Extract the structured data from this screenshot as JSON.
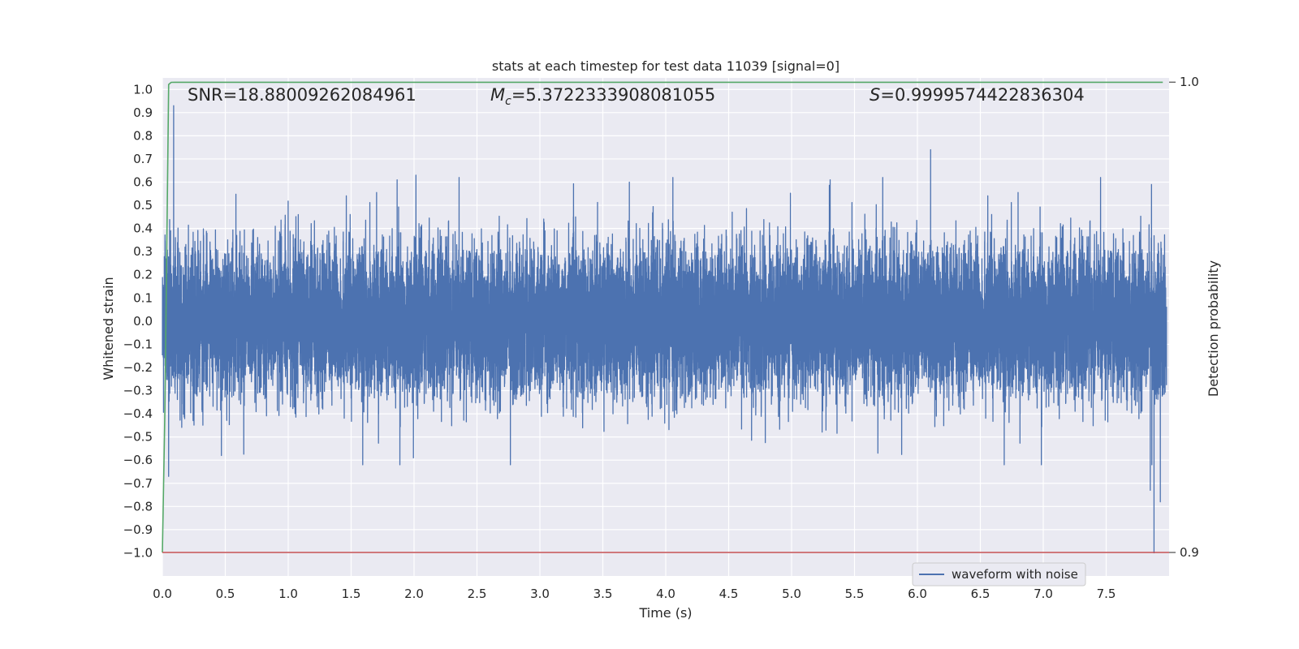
{
  "chart_data": {
    "type": "line",
    "title": "stats at each timestep for test data 11039 [signal=0]",
    "xlabel": "Time (s)",
    "ylabel": "Whitened strain",
    "y2label": "Detection probability",
    "xlim": [
      0.0,
      8.0
    ],
    "ylim": [
      -1.1,
      1.05
    ],
    "y2lim": [
      0.895,
      1.0009
    ],
    "x_ticks": [
      "0.0",
      "0.5",
      "1.0",
      "1.5",
      "2.0",
      "2.5",
      "3.0",
      "3.5",
      "4.0",
      "4.5",
      "5.0",
      "5.5",
      "6.0",
      "6.5",
      "7.0",
      "7.5"
    ],
    "y_ticks": [
      "1.0",
      "0.9",
      "0.8",
      "0.7",
      "0.6",
      "0.5",
      "0.4",
      "0.3",
      "0.2",
      "0.1",
      "0.0",
      "-0.1",
      "-0.2",
      "-0.3",
      "-0.4",
      "-0.5",
      "-0.6",
      "-0.7",
      "-0.8",
      "-0.9",
      "-1.0"
    ],
    "y2_ticks": [
      "1.0",
      "0.9"
    ],
    "grid": true,
    "annotations": {
      "snr": "SNR=18.88009262084961",
      "mc_symbol": "M",
      "mc_sub": "c",
      "mc_value": "=5.3722333908081055",
      "s_symbol": "S",
      "s_value": "=0.9999574422836304"
    },
    "legend": {
      "placement": "lower-right",
      "entries": [
        "waveform with noise"
      ]
    },
    "series": [
      {
        "name": "waveform with noise",
        "color": "#4c72b0",
        "axis": "left",
        "sample_rate": 2048,
        "x_end": 8.0,
        "amplitude_sd": 0.155,
        "peaks": [
          {
            "x": 0.09,
            "y": 0.93
          },
          {
            "x": 0.05,
            "y": -0.67
          },
          {
            "x": 2.02,
            "y": 0.63
          },
          {
            "x": 1.87,
            "y": 0.61
          },
          {
            "x": 6.12,
            "y": 0.74
          },
          {
            "x": 5.32,
            "y": 0.61
          },
          {
            "x": 3.72,
            "y": 0.6
          },
          {
            "x": 2.0,
            "y": -0.59
          },
          {
            "x": 0.47,
            "y": -0.58
          },
          {
            "x": 5.7,
            "y": -0.57
          },
          {
            "x": 7.88,
            "y": 0.59
          },
          {
            "x": 7.9,
            "y": -1.0
          },
          {
            "x": 7.87,
            "y": -0.73
          },
          {
            "x": 7.95,
            "y": -0.78
          }
        ]
      },
      {
        "name": "detection probability",
        "color": "#55a868",
        "axis": "right",
        "x": [
          0.0,
          0.02,
          0.05,
          0.07,
          0.1,
          7.95
        ],
        "y": [
          0.9,
          0.93,
          0.9995,
          0.99995,
          0.99996,
          0.99996
        ]
      },
      {
        "name": "threshold",
        "color": "#c44e52",
        "axis": "right",
        "x": [
          0.0,
          8.0
        ],
        "y": [
          0.9,
          0.9
        ]
      }
    ]
  }
}
